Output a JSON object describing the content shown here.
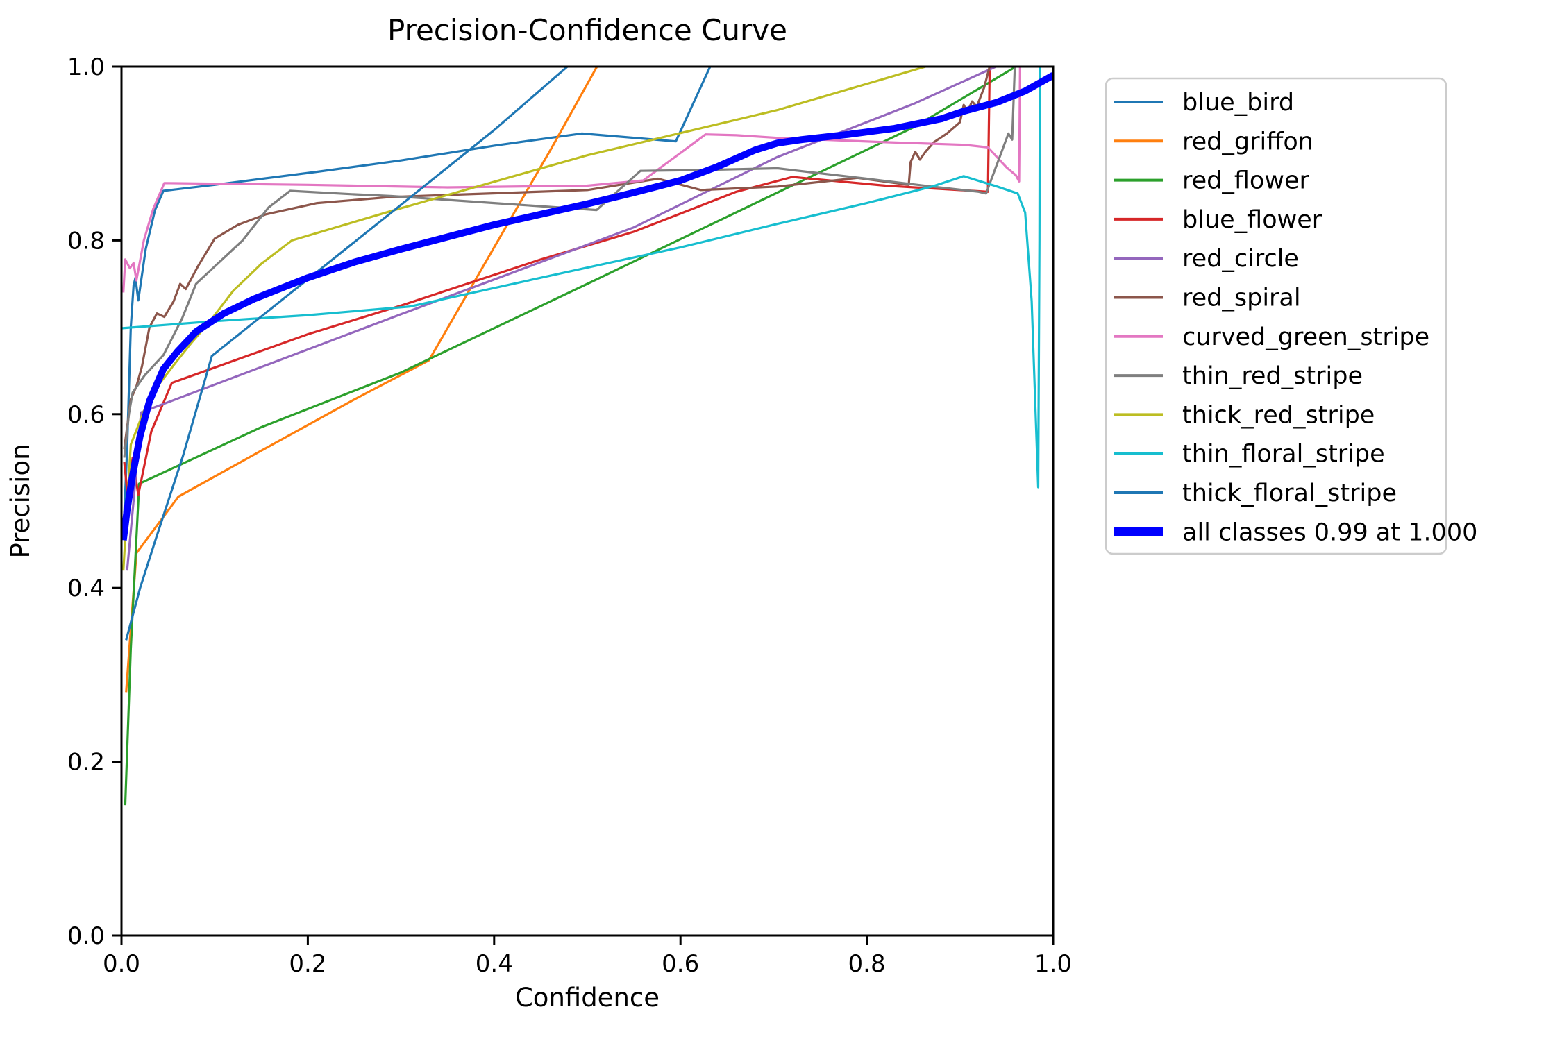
{
  "title": "Precision-Confidence Curve",
  "axes": {
    "x_label": "Confidence",
    "y_label": "Precision",
    "x_lim": [
      0.0,
      1.0
    ],
    "y_lim": [
      0.0,
      1.0
    ],
    "x_ticks": [
      {
        "v": 0.0,
        "label": "0.0"
      },
      {
        "v": 0.2,
        "label": "0.2"
      },
      {
        "v": 0.4,
        "label": "0.4"
      },
      {
        "v": 0.6,
        "label": "0.6"
      },
      {
        "v": 0.8,
        "label": "0.8"
      },
      {
        "v": 1.0,
        "label": "1.0"
      }
    ],
    "y_ticks": [
      {
        "v": 0.0,
        "label": "0.0"
      },
      {
        "v": 0.2,
        "label": "0.2"
      },
      {
        "v": 0.4,
        "label": "0.4"
      },
      {
        "v": 0.6,
        "label": "0.6"
      },
      {
        "v": 0.8,
        "label": "0.8"
      },
      {
        "v": 1.0,
        "label": "1.0"
      }
    ],
    "spine_color": "#000000",
    "background": "#ffffff"
  },
  "legend": {
    "items": [
      {
        "label": "blue_bird",
        "color": "#1f77b4",
        "thick": false
      },
      {
        "label": "red_griffon",
        "color": "#ff7f0e",
        "thick": false
      },
      {
        "label": "red_flower",
        "color": "#2ca02c",
        "thick": false
      },
      {
        "label": "blue_flower",
        "color": "#d62728",
        "thick": false
      },
      {
        "label": "red_circle",
        "color": "#9467bd",
        "thick": false
      },
      {
        "label": "red_spiral",
        "color": "#8c564b",
        "thick": false
      },
      {
        "label": "curved_green_stripe",
        "color": "#e377c2",
        "thick": false
      },
      {
        "label": "thin_red_stripe",
        "color": "#7f7f7f",
        "thick": false
      },
      {
        "label": "thick_red_stripe",
        "color": "#bcbd22",
        "thick": false
      },
      {
        "label": "thin_floral_stripe",
        "color": "#17becf",
        "thick": false
      },
      {
        "label": "thick_floral_stripe",
        "color": "#1f77b4",
        "thick": false
      },
      {
        "label": "all classes 0.99 at 1.000",
        "color": "#0000ff",
        "thick": true
      }
    ]
  },
  "chart_data": {
    "type": "line",
    "title": "Precision-Confidence Curve",
    "xlabel": "Confidence",
    "ylabel": "Precision",
    "xlim": [
      0.0,
      1.0
    ],
    "ylim": [
      0.0,
      1.0
    ],
    "grid": false,
    "legend_position": "outside-right",
    "annotation": "all classes reach precision 0.99 at confidence 1.000",
    "series": [
      {
        "name": "blue_bird",
        "color": "#1f77b4",
        "width": 3.2,
        "points": [
          [
            0.002,
            0.46
          ],
          [
            0.006,
            0.56
          ],
          [
            0.01,
            0.7
          ],
          [
            0.013,
            0.748
          ],
          [
            0.015,
            0.757
          ],
          [
            0.018,
            0.731
          ],
          [
            0.026,
            0.79
          ],
          [
            0.036,
            0.835
          ],
          [
            0.045,
            0.857
          ],
          [
            0.1,
            0.864
          ],
          [
            0.21,
            0.879
          ],
          [
            0.3,
            0.892
          ],
          [
            0.4,
            0.909
          ],
          [
            0.494,
            0.923
          ],
          [
            0.595,
            0.914
          ],
          [
            0.634,
            1.005
          ]
        ]
      },
      {
        "name": "red_griffon",
        "color": "#ff7f0e",
        "width": 3.2,
        "points": [
          [
            0.005,
            0.28
          ],
          [
            0.016,
            0.44
          ],
          [
            0.061,
            0.505
          ],
          [
            0.15,
            0.558
          ],
          [
            0.25,
            0.617
          ],
          [
            0.33,
            0.662
          ],
          [
            0.4,
            0.792
          ],
          [
            0.462,
            0.907
          ],
          [
            0.513,
            1.005
          ]
        ]
      },
      {
        "name": "red_flower",
        "color": "#2ca02c",
        "width": 3.2,
        "points": [
          [
            0.004,
            0.15
          ],
          [
            0.01,
            0.33
          ],
          [
            0.019,
            0.52
          ],
          [
            0.15,
            0.585
          ],
          [
            0.3,
            0.648
          ],
          [
            0.5,
            0.75
          ],
          [
            0.704,
            0.855
          ],
          [
            0.85,
            0.93
          ],
          [
            0.968,
            1.005
          ]
        ]
      },
      {
        "name": "blue_flower",
        "color": "#d62728",
        "width": 3.2,
        "points": [
          [
            0.003,
            0.545
          ],
          [
            0.007,
            0.502
          ],
          [
            0.012,
            0.55
          ],
          [
            0.018,
            0.507
          ],
          [
            0.032,
            0.58
          ],
          [
            0.054,
            0.636
          ],
          [
            0.2,
            0.692
          ],
          [
            0.3,
            0.725
          ],
          [
            0.45,
            0.778
          ],
          [
            0.55,
            0.81
          ],
          [
            0.66,
            0.856
          ],
          [
            0.72,
            0.873
          ],
          [
            0.82,
            0.863
          ],
          [
            0.93,
            0.856
          ],
          [
            0.932,
            1.005
          ]
        ]
      },
      {
        "name": "red_circle",
        "color": "#9467bd",
        "width": 3.2,
        "points": [
          [
            0.006,
            0.42
          ],
          [
            0.013,
            0.5
          ],
          [
            0.021,
            0.602
          ],
          [
            0.3,
            0.715
          ],
          [
            0.55,
            0.815
          ],
          [
            0.704,
            0.896
          ],
          [
            0.85,
            0.957
          ],
          [
            0.949,
            1.005
          ]
        ]
      },
      {
        "name": "red_spiral",
        "color": "#8c564b",
        "width": 3.2,
        "points": [
          [
            0.003,
            0.56
          ],
          [
            0.01,
            0.617
          ],
          [
            0.016,
            0.632
          ],
          [
            0.022,
            0.655
          ],
          [
            0.03,
            0.7
          ],
          [
            0.038,
            0.716
          ],
          [
            0.046,
            0.712
          ],
          [
            0.056,
            0.73
          ],
          [
            0.063,
            0.75
          ],
          [
            0.069,
            0.744
          ],
          [
            0.082,
            0.77
          ],
          [
            0.1,
            0.802
          ],
          [
            0.125,
            0.818
          ],
          [
            0.155,
            0.83
          ],
          [
            0.21,
            0.843
          ],
          [
            0.29,
            0.85
          ],
          [
            0.5,
            0.858
          ],
          [
            0.576,
            0.871
          ],
          [
            0.622,
            0.858
          ],
          [
            0.704,
            0.862
          ],
          [
            0.79,
            0.872
          ],
          [
            0.845,
            0.864
          ],
          [
            0.847,
            0.89
          ],
          [
            0.852,
            0.902
          ],
          [
            0.857,
            0.893
          ],
          [
            0.863,
            0.902
          ],
          [
            0.872,
            0.913
          ],
          [
            0.886,
            0.923
          ],
          [
            0.9,
            0.936
          ],
          [
            0.904,
            0.956
          ],
          [
            0.908,
            0.948
          ],
          [
            0.913,
            0.96
          ],
          [
            0.918,
            0.954
          ],
          [
            0.926,
            0.976
          ],
          [
            0.933,
            1.005
          ]
        ]
      },
      {
        "name": "curved_green_stripe",
        "color": "#e377c2",
        "width": 3.2,
        "points": [
          [
            0.002,
            0.74
          ],
          [
            0.004,
            0.778
          ],
          [
            0.009,
            0.768
          ],
          [
            0.013,
            0.774
          ],
          [
            0.016,
            0.754
          ],
          [
            0.024,
            0.8
          ],
          [
            0.034,
            0.836
          ],
          [
            0.046,
            0.866
          ],
          [
            0.2,
            0.864
          ],
          [
            0.35,
            0.861
          ],
          [
            0.5,
            0.863
          ],
          [
            0.56,
            0.869
          ],
          [
            0.627,
            0.922
          ],
          [
            0.66,
            0.921
          ],
          [
            0.704,
            0.918
          ],
          [
            0.82,
            0.913
          ],
          [
            0.905,
            0.91
          ],
          [
            0.93,
            0.907
          ],
          [
            0.95,
            0.884
          ],
          [
            0.96,
            0.875
          ],
          [
            0.9635,
            0.868
          ],
          [
            0.9645,
            1.005
          ]
        ]
      },
      {
        "name": "thin_red_stripe",
        "color": "#7f7f7f",
        "width": 3.2,
        "points": [
          [
            0.003,
            0.55
          ],
          [
            0.008,
            0.6
          ],
          [
            0.012,
            0.625
          ],
          [
            0.025,
            0.645
          ],
          [
            0.045,
            0.668
          ],
          [
            0.065,
            0.71
          ],
          [
            0.08,
            0.75
          ],
          [
            0.1,
            0.77
          ],
          [
            0.13,
            0.8
          ],
          [
            0.158,
            0.838
          ],
          [
            0.181,
            0.857
          ],
          [
            0.25,
            0.853
          ],
          [
            0.29,
            0.851
          ],
          [
            0.4,
            0.843
          ],
          [
            0.51,
            0.835
          ],
          [
            0.557,
            0.88
          ],
          [
            0.62,
            0.881
          ],
          [
            0.704,
            0.883
          ],
          [
            0.8,
            0.871
          ],
          [
            0.87,
            0.862
          ],
          [
            0.92,
            0.856
          ],
          [
            0.928,
            0.854
          ],
          [
            0.952,
            0.923
          ],
          [
            0.956,
            0.916
          ],
          [
            0.959,
            1.005
          ]
        ]
      },
      {
        "name": "thick_red_stripe",
        "color": "#bcbd22",
        "width": 3.2,
        "points": [
          [
            0.002,
            0.42
          ],
          [
            0.01,
            0.565
          ],
          [
            0.03,
            0.62
          ],
          [
            0.055,
            0.655
          ],
          [
            0.075,
            0.682
          ],
          [
            0.092,
            0.703
          ],
          [
            0.12,
            0.742
          ],
          [
            0.15,
            0.773
          ],
          [
            0.183,
            0.8
          ],
          [
            0.29,
            0.834
          ],
          [
            0.5,
            0.898
          ],
          [
            0.704,
            0.95
          ],
          [
            0.879,
            1.005
          ]
        ]
      },
      {
        "name": "thin_floral_stripe",
        "color": "#17becf",
        "width": 3.2,
        "points": [
          [
            0.001,
            0.699
          ],
          [
            0.1,
            0.707
          ],
          [
            0.2,
            0.714
          ],
          [
            0.31,
            0.724
          ],
          [
            0.45,
            0.757
          ],
          [
            0.6,
            0.792
          ],
          [
            0.704,
            0.819
          ],
          [
            0.8,
            0.843
          ],
          [
            0.87,
            0.862
          ],
          [
            0.904,
            0.874
          ],
          [
            0.94,
            0.862
          ],
          [
            0.962,
            0.854
          ],
          [
            0.97,
            0.832
          ],
          [
            0.977,
            0.73
          ],
          [
            0.984,
            0.516
          ],
          [
            0.9853,
            0.8
          ],
          [
            0.9858,
            1.005
          ]
        ]
      },
      {
        "name": "thick_floral_stripe",
        "color": "#1f77b4",
        "width": 3.2,
        "points": [
          [
            0.005,
            0.34
          ],
          [
            0.02,
            0.4
          ],
          [
            0.037,
            0.457
          ],
          [
            0.066,
            0.552
          ],
          [
            0.097,
            0.667
          ],
          [
            0.3,
            0.841
          ],
          [
            0.4,
            0.927
          ],
          [
            0.484,
            1.005
          ]
        ]
      },
      {
        "name": "all classes 0.99 at 1.000",
        "color": "#0000ff",
        "width": 10,
        "points": [
          [
            0.002,
            0.455
          ],
          [
            0.006,
            0.49
          ],
          [
            0.012,
            0.53
          ],
          [
            0.02,
            0.575
          ],
          [
            0.03,
            0.615
          ],
          [
            0.045,
            0.652
          ],
          [
            0.06,
            0.672
          ],
          [
            0.08,
            0.695
          ],
          [
            0.11,
            0.716
          ],
          [
            0.143,
            0.733
          ],
          [
            0.2,
            0.757
          ],
          [
            0.25,
            0.775
          ],
          [
            0.3,
            0.79
          ],
          [
            0.35,
            0.804
          ],
          [
            0.4,
            0.818
          ],
          [
            0.45,
            0.83
          ],
          [
            0.5,
            0.842
          ],
          [
            0.55,
            0.855
          ],
          [
            0.6,
            0.869
          ],
          [
            0.64,
            0.885
          ],
          [
            0.68,
            0.904
          ],
          [
            0.704,
            0.912
          ],
          [
            0.73,
            0.916
          ],
          [
            0.78,
            0.922
          ],
          [
            0.83,
            0.929
          ],
          [
            0.88,
            0.94
          ],
          [
            0.905,
            0.949
          ],
          [
            0.94,
            0.959
          ],
          [
            0.97,
            0.972
          ],
          [
            1.0,
            0.99
          ]
        ]
      }
    ]
  }
}
